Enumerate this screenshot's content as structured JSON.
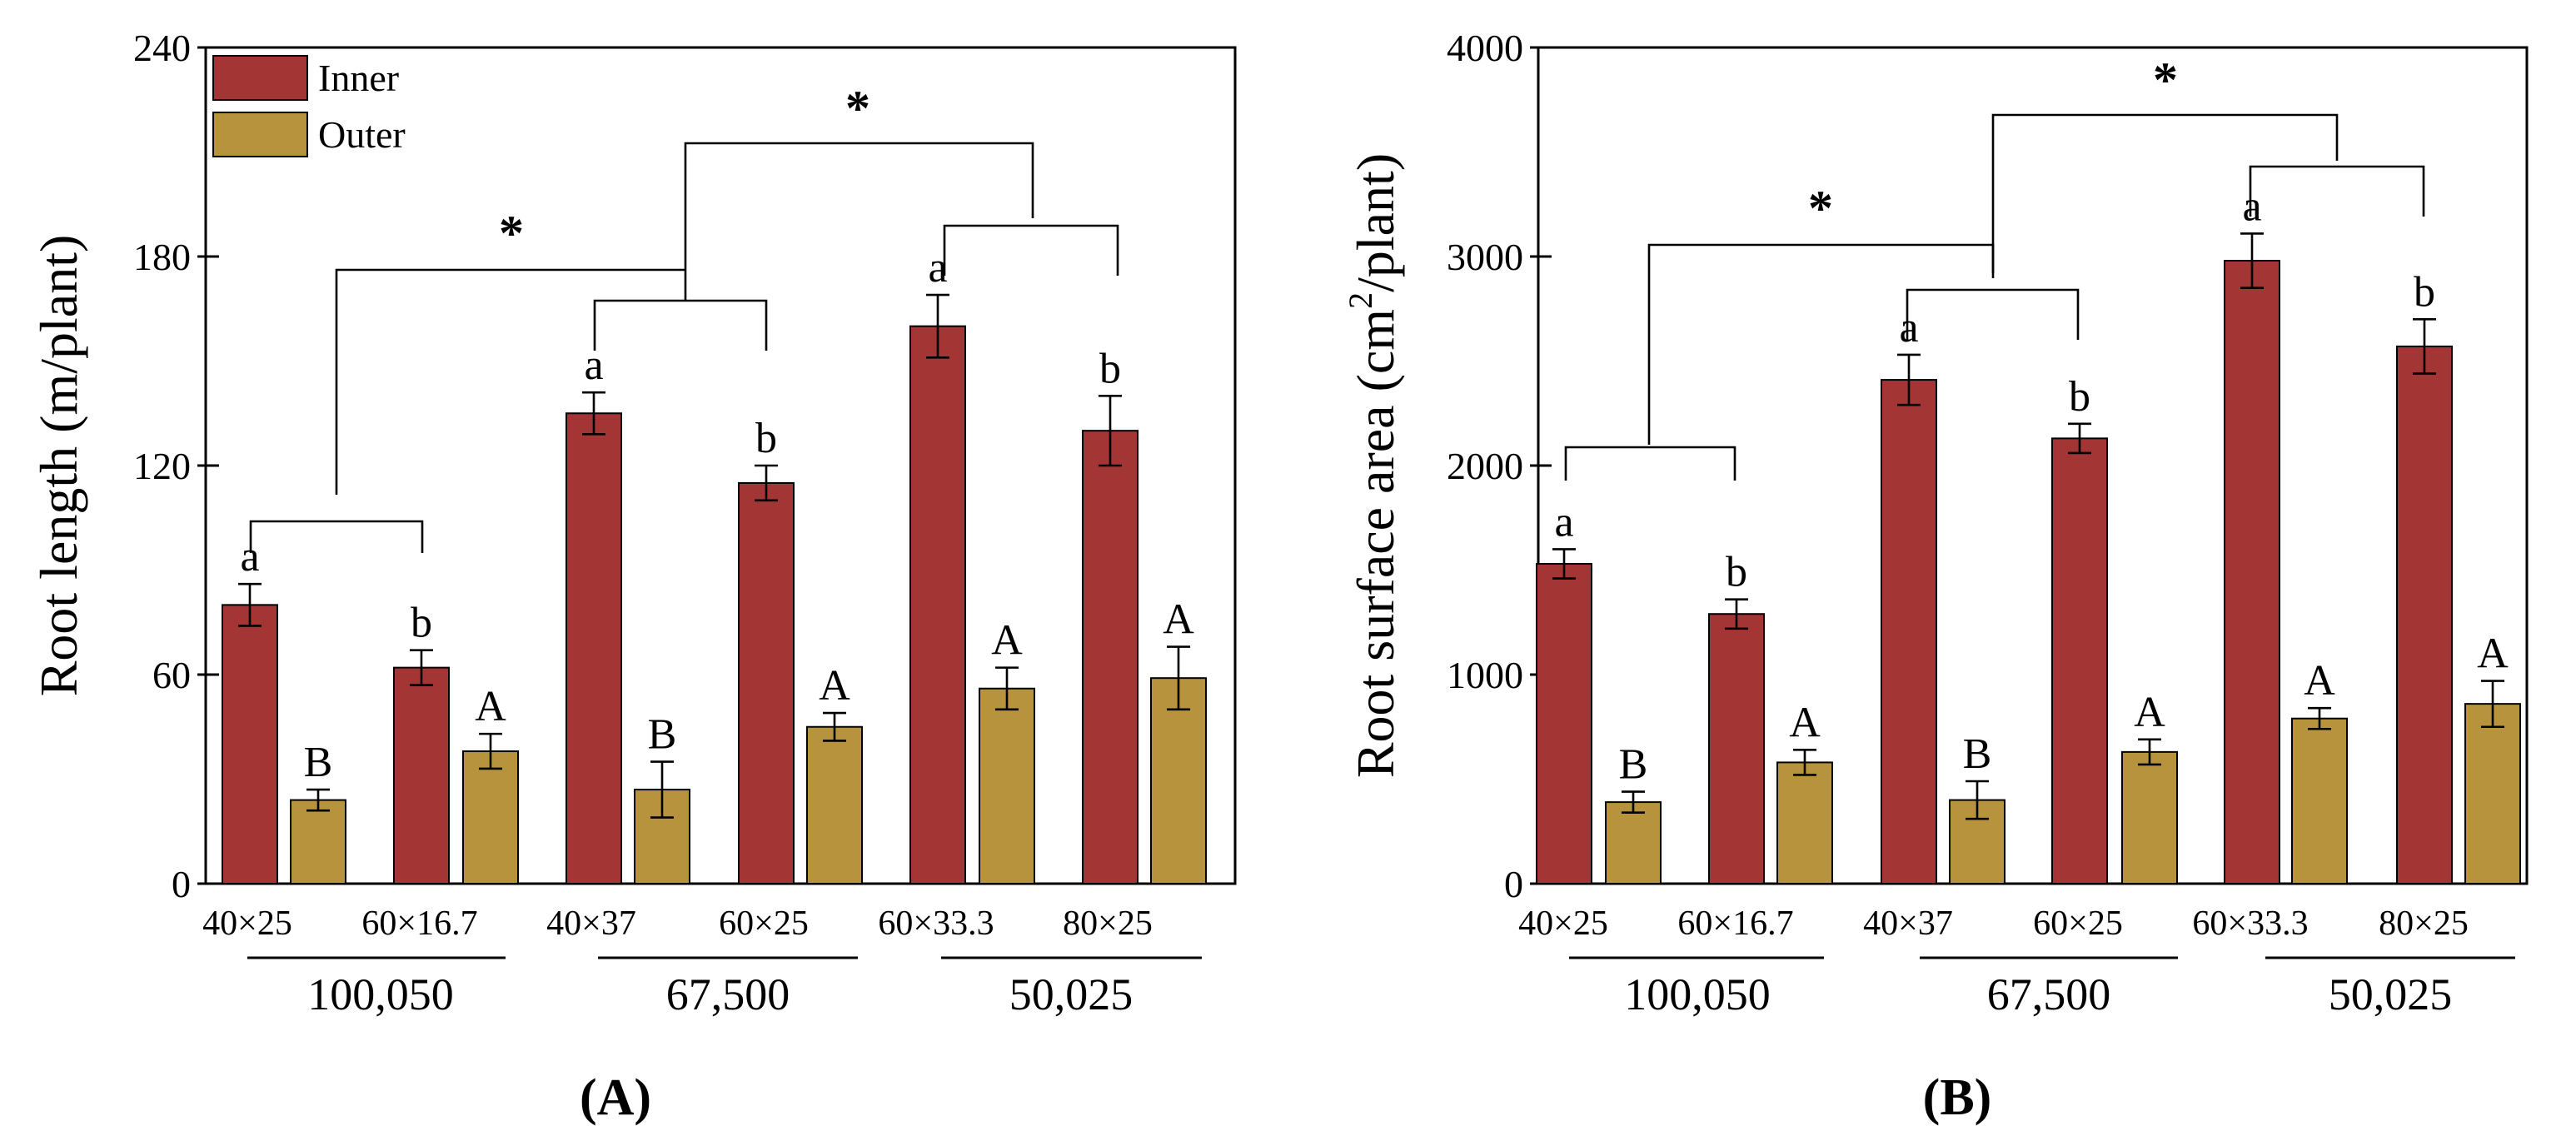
{
  "colors": {
    "inner": "#a33535",
    "outer": "#b8933d"
  },
  "chart_data": [
    {
      "type": "bar",
      "panel_label": "A",
      "ylabel": "Root length (m/plant)",
      "ylim": [
        0,
        240
      ],
      "yticks": [
        0,
        60,
        120,
        180,
        240
      ],
      "categories": [
        "40×25",
        "60×16.7",
        "40×37",
        "60×25",
        "60×33.3",
        "80×25"
      ],
      "groups": [
        {
          "label": "100,050",
          "categories": [
            "40×25",
            "60×16.7"
          ]
        },
        {
          "label": "67,500",
          "categories": [
            "40×37",
            "60×25"
          ]
        },
        {
          "label": "50,025",
          "categories": [
            "60×33.3",
            "80×25"
          ]
        }
      ],
      "legend": {
        "position": "top-left",
        "entries": [
          "Inner",
          "Outer"
        ]
      },
      "series": [
        {
          "name": "Inner",
          "values": [
            80,
            62,
            135,
            115,
            160,
            130
          ],
          "errors": [
            6,
            5,
            6,
            5,
            9,
            10
          ],
          "letters": [
            "a",
            "b",
            "a",
            "b",
            "a",
            "b"
          ]
        },
        {
          "name": "Outer",
          "values": [
            24,
            38,
            27,
            45,
            56,
            59
          ],
          "errors": [
            3,
            5,
            8,
            4,
            6,
            9
          ],
          "letters": [
            "B",
            "A",
            "B",
            "A",
            "A",
            "A"
          ]
        }
      ],
      "significance": [
        {
          "from": "100,050",
          "to": "67,500",
          "label": "*"
        },
        {
          "from": "67,500",
          "to": "50,025",
          "label": "*"
        }
      ]
    },
    {
      "type": "bar",
      "panel_label": "B",
      "ylabel": "Root surface area (cm²/plant)",
      "ylabel_parts": [
        "Root surface area (cm",
        "2",
        "/plant)"
      ],
      "ylim": [
        0,
        4000
      ],
      "yticks": [
        0,
        1000,
        2000,
        3000,
        4000
      ],
      "categories": [
        "40×25",
        "60×16.7",
        "40×37",
        "60×25",
        "60×33.3",
        "80×25"
      ],
      "groups": [
        {
          "label": "100,050",
          "categories": [
            "40×25",
            "60×16.7"
          ]
        },
        {
          "label": "67,500",
          "categories": [
            "40×37",
            "60×25"
          ]
        },
        {
          "label": "50,025",
          "categories": [
            "60×33.3",
            "80×25"
          ]
        }
      ],
      "series": [
        {
          "name": "Inner",
          "values": [
            1530,
            1290,
            2410,
            2130,
            2980,
            2570
          ],
          "errors": [
            70,
            70,
            120,
            70,
            130,
            130
          ],
          "letters": [
            "a",
            "b",
            "a",
            "b",
            "a",
            "b"
          ]
        },
        {
          "name": "Outer",
          "values": [
            390,
            580,
            400,
            630,
            790,
            860
          ],
          "errors": [
            50,
            60,
            90,
            60,
            50,
            110
          ],
          "letters": [
            "B",
            "A",
            "B",
            "A",
            "A",
            "A"
          ]
        }
      ],
      "significance": [
        {
          "from": "100,050",
          "to": "67,500",
          "label": "*"
        },
        {
          "from": "67,500",
          "to": "50,025",
          "label": "*"
        }
      ]
    }
  ]
}
